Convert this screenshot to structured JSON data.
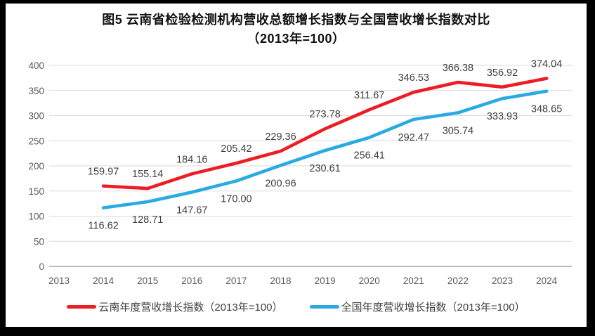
{
  "chart_data": {
    "type": "line",
    "title_line1": "图5  云南省检验检测机构营收总额增长指数与全国营收增长指数对比",
    "title_line2": "（2013年=100）",
    "categories": [
      "2013",
      "2014",
      "2015",
      "2016",
      "2017",
      "2018",
      "2019",
      "2020",
      "2021",
      "2022",
      "2023",
      "2024"
    ],
    "ylim": [
      0,
      400
    ],
    "ytick_step": 50,
    "yticks": [
      0,
      50,
      100,
      150,
      200,
      250,
      300,
      350,
      400
    ],
    "grid": "horizontal",
    "grid_color": "#dadada",
    "axis_color": "#b0b0b0",
    "legend_position": "bottom",
    "series": [
      {
        "name": "云南年度营收增长指数（2013年=100）",
        "color": "#ee1c23",
        "start_category": "2014",
        "values": [
          159.97,
          155.14,
          184.16,
          205.42,
          229.36,
          273.78,
          311.67,
          346.53,
          366.38,
          356.92,
          374.04
        ],
        "labels": [
          "159.97",
          "155.14",
          "184.16",
          "205.42",
          "229.36",
          "273.78",
          "311.67",
          "346.53",
          "366.38",
          "356.92",
          "374.04"
        ],
        "label_position": "above"
      },
      {
        "name": "全国年度营收增长指数（2013年=100）",
        "color": "#29abe2",
        "start_category": "2014",
        "values": [
          116.62,
          128.71,
          147.67,
          170.0,
          200.96,
          230.61,
          256.41,
          292.47,
          305.74,
          333.93,
          348.65
        ],
        "labels": [
          "116.62",
          "128.71",
          "147.67",
          "170.00",
          "200.96",
          "230.61",
          "256.41",
          "292.47",
          "305.74",
          "333.93",
          "348.65"
        ],
        "label_position": "below"
      }
    ]
  }
}
